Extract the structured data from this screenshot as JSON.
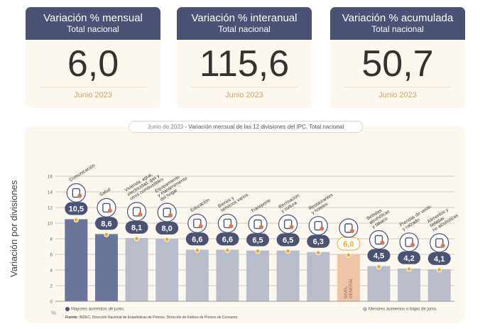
{
  "cards": [
    {
      "title": "Variación % mensual",
      "subtitle": "Total nacional",
      "value": "6,0",
      "date": "Junio 2023"
    },
    {
      "title": "Variación % interanual",
      "subtitle": "Total nacional",
      "value": "115,6",
      "date": "Junio 2023"
    },
    {
      "title": "Variación % acumulada",
      "subtitle": "Total nacional",
      "value": "50,7",
      "date": "Junio 2023"
    }
  ],
  "chart_title_date": "Junio de 2023",
  "chart_title_rest": " - Variación mensual de las 12 divisiones del IPC. Total nacional",
  "ylabel": "Variación por divisiones",
  "unit": "%",
  "legend_high": "Mayores aumentos de junio.",
  "legend_low": "Menores aumentos o bajas de junio.",
  "source_label": "Fuente:",
  "source_text": " INDEC, Dirección Nacional de Estadísticas de Precios. Dirección de Índices de Precios de Consumo.",
  "colors": {
    "high": "#6a7599",
    "low": "#b9bdca",
    "general": "#efc5a7",
    "badge": "#4c5273",
    "dot": "#f0a92a"
  },
  "chart_data": {
    "type": "bar",
    "ylim": [
      0,
      16
    ],
    "yticks": [
      0,
      2,
      4,
      6,
      8,
      10,
      12,
      14,
      16
    ],
    "categories": [
      {
        "lines": [
          "Comunicación"
        ],
        "value": 10.5,
        "label": "10,5",
        "group": "high",
        "icon": "phone-icon"
      },
      {
        "lines": [
          "Salud"
        ],
        "value": 8.6,
        "label": "8,6",
        "group": "high",
        "icon": "medical-kit-icon"
      },
      {
        "lines": [
          "Vivienda, agua,",
          "electricidad, gas y",
          "otros combustibles"
        ],
        "value": 8.1,
        "label": "8,1",
        "group": "low",
        "icon": "light-bulb-icon"
      },
      {
        "lines": [
          "Equipamiento",
          "y mantenimiento",
          "del hogar"
        ],
        "value": 8.0,
        "label": "8,0",
        "group": "low",
        "icon": "home-appliance-icon"
      },
      {
        "lines": [
          "Educación"
        ],
        "value": 6.6,
        "label": "6,6",
        "group": "low",
        "icon": "notebook-icon"
      },
      {
        "lines": [
          "Bienes y",
          "servicios varios"
        ],
        "value": 6.6,
        "label": "6,6",
        "group": "low",
        "icon": "razor-icon"
      },
      {
        "lines": [
          "Transporte"
        ],
        "value": 6.5,
        "label": "6,5",
        "group": "low",
        "icon": "bus-icon"
      },
      {
        "lines": [
          "Recreación",
          "y cultura"
        ],
        "value": 6.5,
        "label": "6,5",
        "group": "low",
        "icon": "gaming-icon"
      },
      {
        "lines": [
          "Restaurantes",
          "y hoteles"
        ],
        "value": 6.3,
        "label": "6,3",
        "group": "low",
        "icon": "dish-icon"
      },
      {
        "lines": [],
        "value": 6.0,
        "label": "6,0",
        "group": "general",
        "icon": "shopping-basket-icon",
        "bar_text": [
          "NIVEL",
          "GENERAL"
        ]
      },
      {
        "lines": [
          "Bebidas",
          "alcohólicas",
          "y tabaco"
        ],
        "value": 4.5,
        "label": "4,5",
        "group": "low",
        "icon": "bottle-icon"
      },
      {
        "lines": [
          "Prendas de vestir",
          "y calzado"
        ],
        "value": 4.2,
        "label": "4,2",
        "group": "low",
        "icon": "shirt-icon"
      },
      {
        "lines": [
          "Alimentos y",
          "bebidas",
          "no alcohólicas"
        ],
        "value": 4.1,
        "label": "4,1",
        "group": "low",
        "icon": "groceries-icon"
      }
    ]
  }
}
